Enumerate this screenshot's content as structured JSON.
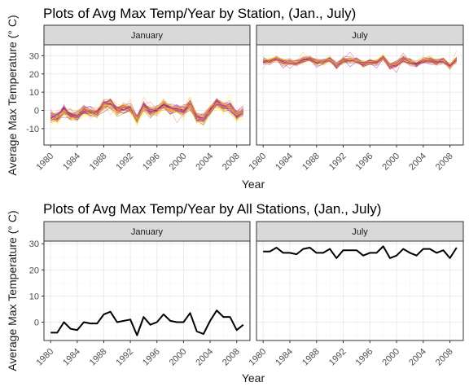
{
  "colors": {
    "strip_fill": "#d9d9d9",
    "grid_major": "#ebebeb",
    "grid_minor": "#f5f5f5",
    "panel_border": "#333333",
    "station_palette": [
      "#0d0887",
      "#6a00a8",
      "#b12a90",
      "#e16462",
      "#fca636",
      "#f0f921"
    ],
    "overall_line": "#000000"
  },
  "chart_data": [
    {
      "type": "line",
      "title": "Plots of Avg Max Temp/Year by Station, (Jan., July)",
      "xlabel": "Year",
      "ylabel": "Average Max Temperature (° C)",
      "xlim": [
        1979,
        2010
      ],
      "ylim": [
        -19,
        36
      ],
      "x_ticks": [
        1980,
        1984,
        1988,
        1992,
        1996,
        2000,
        2004,
        2008
      ],
      "y_ticks": [
        -10,
        0,
        10,
        20,
        30
      ],
      "grid": true,
      "facets": [
        "January",
        "July"
      ],
      "station_lines": "many stations, one colored line per station",
      "x": [
        1980,
        1981,
        1982,
        1983,
        1984,
        1985,
        1986,
        1987,
        1988,
        1989,
        1990,
        1991,
        1992,
        1993,
        1994,
        1995,
        1996,
        1997,
        1998,
        1999,
        2000,
        2001,
        2002,
        2003,
        2004,
        2005,
        2006,
        2007,
        2008,
        2009
      ],
      "series": [
        {
          "facet": "January",
          "values": [
            -4,
            -4,
            0,
            -3,
            -3,
            0,
            -1,
            -1,
            3,
            4,
            0,
            1,
            1,
            -5,
            2,
            -1,
            0,
            3,
            1,
            0,
            0,
            3,
            -4,
            -5,
            0,
            4,
            2,
            2,
            -3,
            -1
          ]
        },
        {
          "facet": "July",
          "values": [
            27,
            27,
            28.5,
            26.5,
            26.5,
            26,
            28,
            28.5,
            26.5,
            26.5,
            28,
            24.5,
            27.5,
            27.5,
            27.5,
            25.5,
            26.5,
            26.5,
            29,
            24.5,
            25.5,
            28,
            26.5,
            25.5,
            27.5,
            27.5,
            26.5,
            27.5,
            24.5,
            28
          ]
        }
      ]
    },
    {
      "type": "line",
      "title": "Plots of Avg Max Temp/Year by All Stations, (Jan., July)",
      "xlabel": "Year",
      "ylabel": "Average Max Temperature (° C)",
      "xlim": [
        1979,
        2010
      ],
      "ylim": [
        -7,
        31
      ],
      "x_ticks": [
        1980,
        1984,
        1988,
        1992,
        1996,
        2000,
        2004,
        2008
      ],
      "y_ticks": [
        0,
        10,
        20,
        30
      ],
      "grid": true,
      "facets": [
        "January",
        "July"
      ],
      "x": [
        1980,
        1981,
        1982,
        1983,
        1984,
        1985,
        1986,
        1987,
        1988,
        1989,
        1990,
        1991,
        1992,
        1993,
        1994,
        1995,
        1996,
        1997,
        1998,
        1999,
        2000,
        2001,
        2002,
        2003,
        2004,
        2005,
        2006,
        2007,
        2008,
        2009
      ],
      "series": [
        {
          "facet": "January",
          "values": [
            -4,
            -4,
            0,
            -2.5,
            -3,
            0,
            -0.5,
            -0.5,
            3,
            4,
            0,
            0.5,
            1,
            -5,
            2,
            -1,
            0,
            3,
            0.5,
            0,
            0,
            3.5,
            -3.5,
            -4.5,
            0.5,
            4.5,
            2,
            2,
            -3,
            -1
          ]
        },
        {
          "facet": "July",
          "values": [
            27,
            27,
            28.5,
            26.5,
            26.5,
            26,
            28,
            28.5,
            26.5,
            26.5,
            28,
            24.5,
            27.5,
            27.5,
            27.5,
            25.5,
            26.5,
            26.5,
            29,
            24.5,
            25.5,
            28,
            26.5,
            25.5,
            28,
            28,
            26.5,
            27.5,
            24.5,
            28.5
          ]
        }
      ]
    }
  ]
}
